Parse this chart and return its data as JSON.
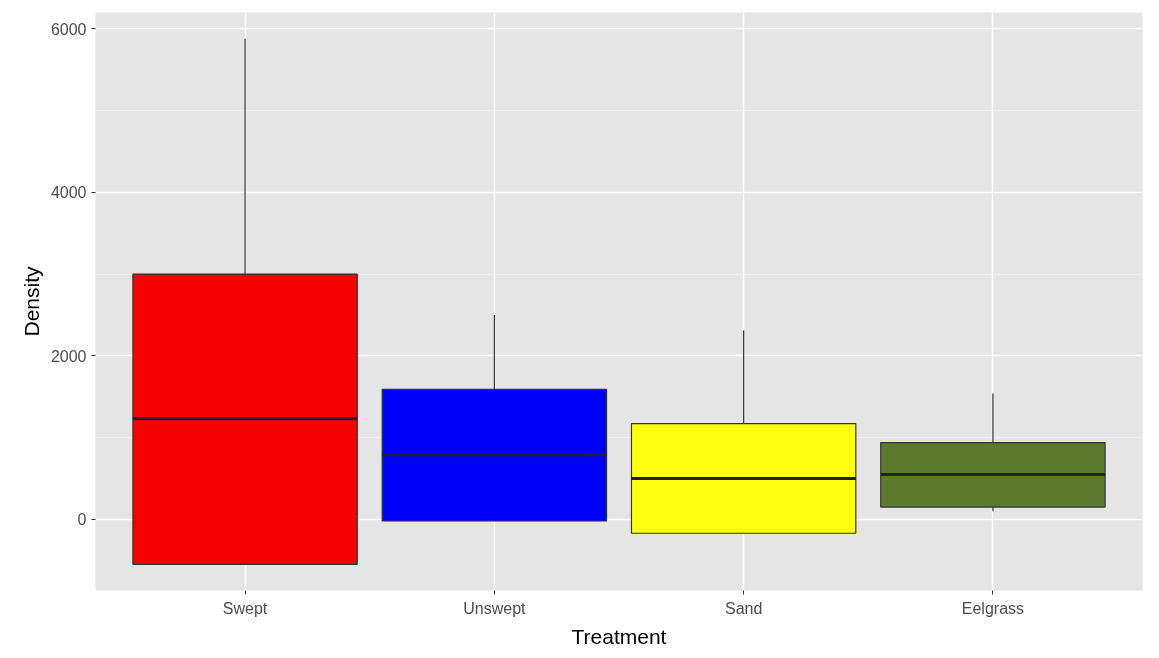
{
  "chart_data": {
    "type": "box",
    "xlabel": "Treatment",
    "ylabel": "Density",
    "categories": [
      "Swept",
      "Unswept",
      "Sand",
      "Eelgrass"
    ],
    "colors": [
      "#f90000",
      "#0000ff",
      "#ffff0f",
      "#5d7b2e"
    ],
    "boxes": [
      {
        "low": -550,
        "q1": -550,
        "median": 1230,
        "q3": 3000,
        "high": 5880
      },
      {
        "low": -20,
        "q1": -20,
        "median": 790,
        "q3": 1590,
        "high": 2500
      },
      {
        "low": -170,
        "q1": -170,
        "median": 500,
        "q3": 1170,
        "high": 2310
      },
      {
        "low": 100,
        "q1": 150,
        "median": 550,
        "q3": 940,
        "high": 1540
      }
    ],
    "ylim": [
      -870,
      6200
    ],
    "yticks": [
      0,
      2000,
      4000,
      6000
    ],
    "grid": true
  }
}
